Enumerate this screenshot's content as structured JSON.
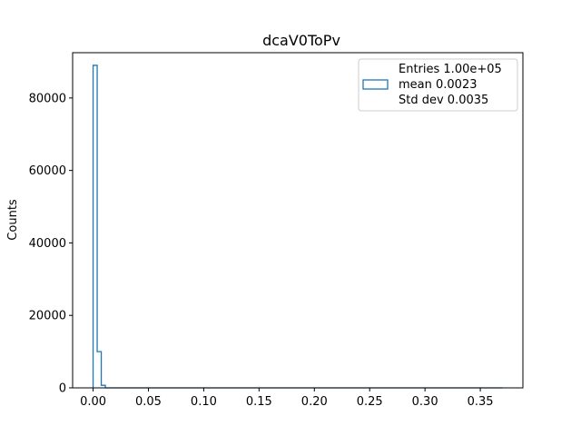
{
  "chart_data": {
    "type": "histogram",
    "title": "dcaV0ToPv",
    "xlabel": "",
    "ylabel": "Counts",
    "xlim": [
      -0.0185,
      0.3885
    ],
    "ylim": [
      0,
      92500
    ],
    "x_ticks": [
      "0.00",
      "0.05",
      "0.10",
      "0.15",
      "0.20",
      "0.25",
      "0.30",
      "0.35"
    ],
    "x_tick_values": [
      0,
      0.05,
      0.1,
      0.15,
      0.2,
      0.25,
      0.3,
      0.35
    ],
    "y_ticks": [
      "0",
      "20000",
      "40000",
      "60000",
      "80000"
    ],
    "y_tick_values": [
      0,
      20000,
      40000,
      60000,
      80000
    ],
    "bins": [
      {
        "x0": 0.0,
        "x1": 0.0037,
        "count": 89000
      },
      {
        "x0": 0.0037,
        "x1": 0.0074,
        "count": 10000
      },
      {
        "x0": 0.0074,
        "x1": 0.0111,
        "count": 700
      },
      {
        "x0": 0.0111,
        "x1": 0.37,
        "count": 0
      }
    ],
    "line_color": "#1f77b4",
    "legend": {
      "position": "top-right",
      "lines": [
        "Entries 1.00e+05",
        "mean 0.0023",
        "Std dev 0.0035"
      ]
    }
  }
}
